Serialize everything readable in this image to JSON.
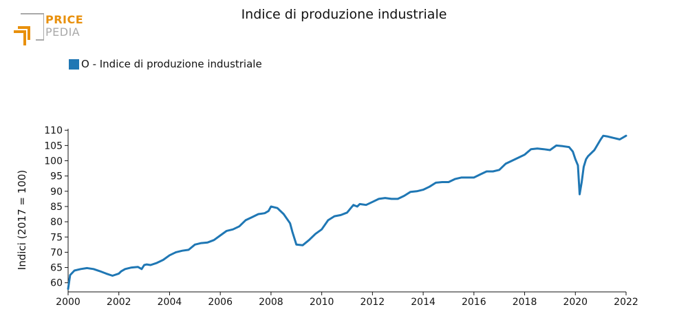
{
  "brand": {
    "line1": "PRICE",
    "line2": "PEDIA"
  },
  "colors": {
    "series": "#1f77b4",
    "logo_orange": "#e8900c",
    "logo_gray": "#a9a9a9"
  },
  "chart_data": {
    "type": "line",
    "title": "Indice di produzione industriale",
    "ylabel": "Indici (2017 = 100)",
    "xlabel": "",
    "xlim": [
      2000,
      2022
    ],
    "ylim": [
      57,
      110.5
    ],
    "xticks": [
      2000,
      2002,
      2004,
      2006,
      2008,
      2010,
      2012,
      2014,
      2016,
      2018,
      2020,
      2022
    ],
    "yticks": [
      60,
      65,
      70,
      75,
      80,
      85,
      90,
      95,
      100,
      105,
      110
    ],
    "legend_position": "top-left",
    "grid": false,
    "series": [
      {
        "name": "O - Indice di produzione industriale",
        "x": [
          2000.0,
          2000.08,
          2000.25,
          2000.5,
          2000.75,
          2001.0,
          2001.25,
          2001.5,
          2001.75,
          2002.0,
          2002.1,
          2002.25,
          2002.5,
          2002.75,
          2002.9,
          2003.0,
          2003.1,
          2003.25,
          2003.5,
          2003.75,
          2004.0,
          2004.25,
          2004.5,
          2004.75,
          2005.0,
          2005.25,
          2005.5,
          2005.75,
          2006.0,
          2006.25,
          2006.5,
          2006.75,
          2007.0,
          2007.25,
          2007.5,
          2007.75,
          2007.9,
          2008.0,
          2008.25,
          2008.5,
          2008.75,
          2008.85,
          2009.0,
          2009.25,
          2009.5,
          2009.75,
          2010.0,
          2010.25,
          2010.5,
          2010.75,
          2011.0,
          2011.25,
          2011.4,
          2011.5,
          2011.75,
          2012.0,
          2012.25,
          2012.5,
          2012.75,
          2013.0,
          2013.25,
          2013.5,
          2013.75,
          2014.0,
          2014.25,
          2014.5,
          2014.75,
          2015.0,
          2015.25,
          2015.5,
          2015.75,
          2016.0,
          2016.25,
          2016.5,
          2016.75,
          2017.0,
          2017.25,
          2017.5,
          2017.75,
          2018.0,
          2018.25,
          2018.5,
          2018.75,
          2019.0,
          2019.25,
          2019.5,
          2019.75,
          2019.9,
          2020.0,
          2020.1,
          2020.17,
          2020.25,
          2020.33,
          2020.42,
          2020.5,
          2020.75,
          2021.0,
          2021.1,
          2021.25,
          2021.5,
          2021.75,
          2022.0
        ],
        "values": [
          58.0,
          62.5,
          64.0,
          64.5,
          64.8,
          64.5,
          63.8,
          63.0,
          62.3,
          63.0,
          63.8,
          64.5,
          65.0,
          65.2,
          64.5,
          65.8,
          66.0,
          65.8,
          66.5,
          67.5,
          69.0,
          70.0,
          70.5,
          70.8,
          72.5,
          73.0,
          73.2,
          74.0,
          75.5,
          77.0,
          77.5,
          78.5,
          80.5,
          81.5,
          82.5,
          82.8,
          83.5,
          85.0,
          84.5,
          82.5,
          79.5,
          76.5,
          72.5,
          72.3,
          74.0,
          76.0,
          77.5,
          80.5,
          81.8,
          82.2,
          83.0,
          85.5,
          85.0,
          85.8,
          85.5,
          86.5,
          87.5,
          87.8,
          87.5,
          87.5,
          88.5,
          89.8,
          90.0,
          90.5,
          91.5,
          92.8,
          93.0,
          93.0,
          94.0,
          94.5,
          94.5,
          94.5,
          95.5,
          96.5,
          96.5,
          97.0,
          99.0,
          100.0,
          101.0,
          102.0,
          103.8,
          104.0,
          103.8,
          103.5,
          105.0,
          104.8,
          104.5,
          103.0,
          100.5,
          98.5,
          89.0,
          93.0,
          98.0,
          100.5,
          101.5,
          103.5,
          107.0,
          108.2,
          108.0,
          107.5,
          107.0,
          108.2
        ]
      }
    ]
  }
}
